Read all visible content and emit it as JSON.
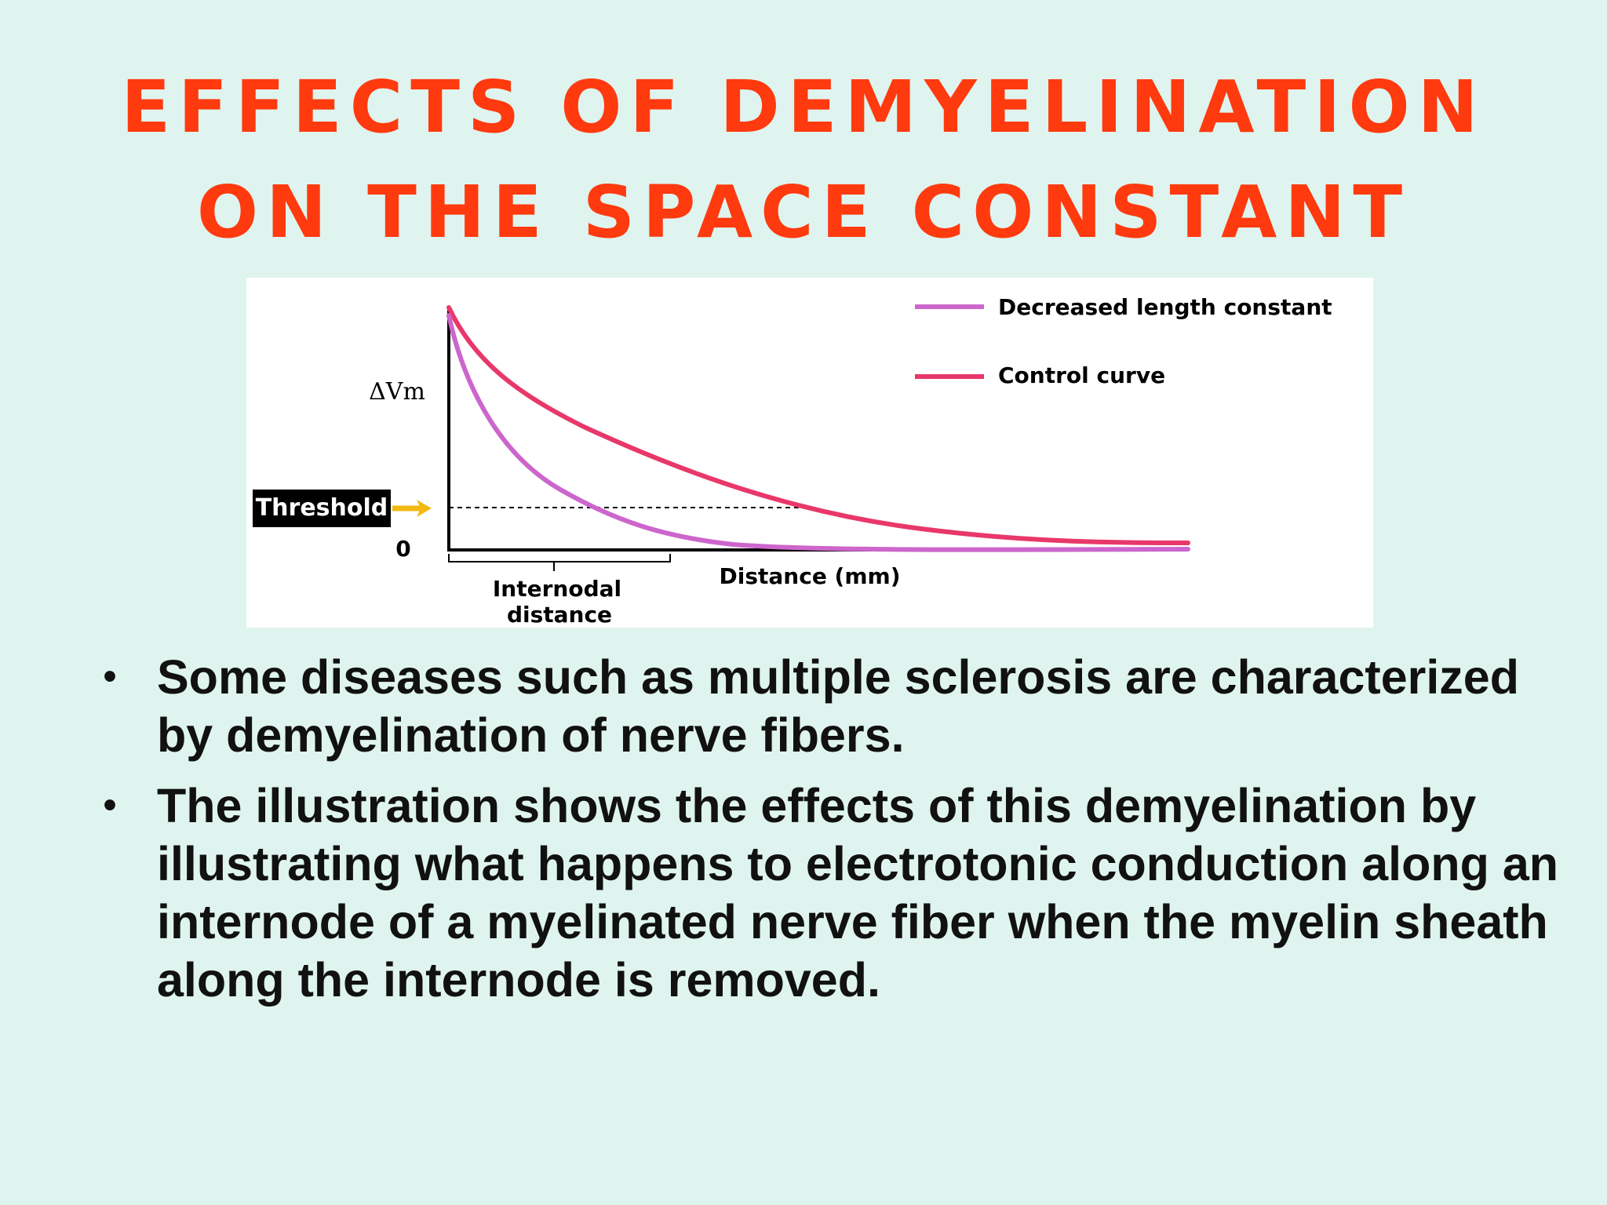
{
  "slide": {
    "title_line1": "EFFECTS OF DEMYELINATION",
    "title_line2": "ON THE SPACE CONSTANT",
    "bullets": [
      "Some diseases such as multiple sclerosis are characterized by demyelination of nerve fibers.",
      "The illustration shows the effects of this demyelination by illustrating what happens to electrotonic conduction along an internode of a myelinated nerve fiber when the myelin sheath along the internode is removed."
    ],
    "bullet_symbol": "•"
  },
  "figure": {
    "y_label": "ΔVm",
    "zero_label": "0",
    "threshold_label": "Threshold",
    "x_label": "Distance (mm)",
    "internode_line1": "Internodal",
    "internode_line2": "distance",
    "legend_decreased": "Decreased length constant",
    "legend_control": "Control curve",
    "colors": {
      "decreased": "#cc66cc",
      "control": "#e8386a",
      "threshold_arrow": "#f2b90f",
      "title": "#ff3a0f"
    }
  }
}
